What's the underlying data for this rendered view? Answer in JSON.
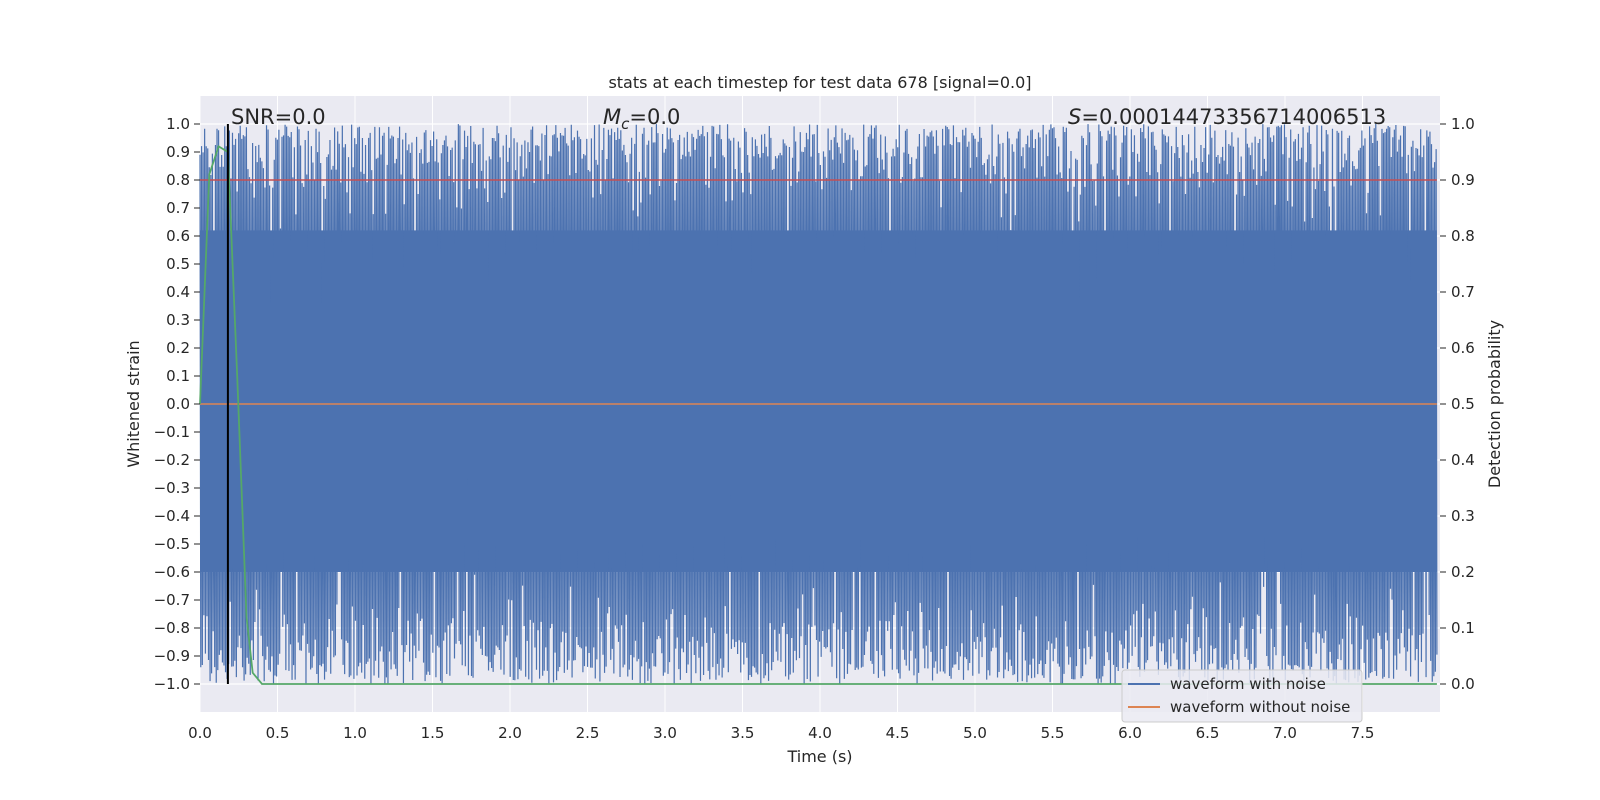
{
  "chart_data": {
    "type": "line",
    "title": "stats at each timestep for test data 678 [signal=0.0]",
    "xlabel": "Time (s)",
    "ylabel": "Whitened strain",
    "y2label": "Detection probability",
    "xlim": [
      0.0,
      8.0
    ],
    "ylim": [
      -1.1,
      1.1
    ],
    "y2lim": [
      -0.05,
      1.05
    ],
    "x_ticks": [
      "0.0",
      "0.5",
      "1.0",
      "1.5",
      "2.0",
      "2.5",
      "3.0",
      "3.5",
      "4.0",
      "4.5",
      "5.0",
      "5.5",
      "6.0",
      "6.5",
      "7.0",
      "7.5"
    ],
    "y_ticks": [
      "1.0",
      "0.9",
      "0.8",
      "0.7",
      "0.6",
      "0.5",
      "0.4",
      "0.3",
      "0.2",
      "0.1",
      "0.0",
      "−0.1",
      "−0.2",
      "−0.3",
      "−0.4",
      "−0.5",
      "−0.6",
      "−0.7",
      "−0.8",
      "−0.9",
      "−1.0"
    ],
    "y2_ticks": [
      "1.0",
      "0.9",
      "0.8",
      "0.7",
      "0.6",
      "0.5",
      "0.4",
      "0.3",
      "0.2",
      "0.1",
      "0.0"
    ],
    "grid": true,
    "annotations": {
      "snr": "SNR=0.0",
      "mc_symbol": "M",
      "mc_sub": "c",
      "mc_value": "=0.0",
      "s_symbol": "S",
      "s_value": "=0.0001447335671400​6513"
    },
    "series": [
      {
        "name": "waveform with noise",
        "color": "#4c72b0",
        "kind": "noise",
        "x_range": [
          0.0,
          7.98
        ],
        "y_range": [
          -1.0,
          1.0
        ]
      },
      {
        "name": "waveform without noise",
        "color": "#dd8452",
        "kind": "constant",
        "y": 0.0
      },
      {
        "color": "#55a868",
        "axis": "right",
        "x": [
          0.0,
          0.06,
          0.12,
          0.18,
          0.24,
          0.3,
          0.34,
          0.4,
          7.98
        ],
        "y": [
          0.5,
          0.91,
          0.96,
          0.95,
          0.55,
          0.12,
          0.02,
          0.0,
          0.0
        ]
      }
    ],
    "threshold": {
      "y2": 0.9,
      "color": "#c44e52"
    },
    "marker_line": {
      "x": 0.18,
      "color": "#000000"
    },
    "legend_position": "lower right"
  },
  "colors": {
    "plot_bg": "#eaeaf2",
    "grid": "#ffffff"
  }
}
